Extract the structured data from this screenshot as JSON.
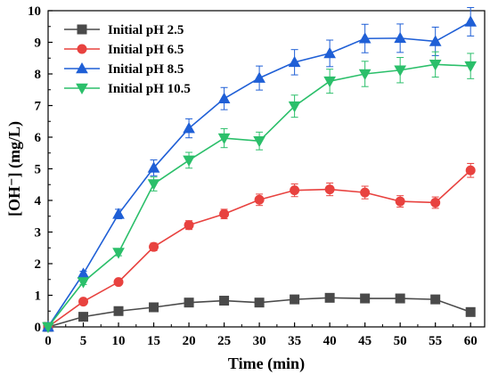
{
  "chart_data": {
    "type": "line",
    "title": "",
    "xlabel": "Time (min)",
    "ylabel": "[OH⁻] (mg/L)",
    "xlim": [
      0,
      62
    ],
    "ylim": [
      0,
      10
    ],
    "xticks": [
      0,
      5,
      10,
      15,
      20,
      25,
      30,
      35,
      40,
      45,
      50,
      55,
      60
    ],
    "yticks": [
      0,
      1,
      2,
      3,
      4,
      5,
      6,
      7,
      8,
      9,
      10
    ],
    "grid": false,
    "legend_position": "top-left",
    "x": [
      0,
      5,
      10,
      15,
      20,
      25,
      30,
      35,
      40,
      45,
      50,
      55,
      60
    ],
    "series": [
      {
        "name": "Initial pH 2.5",
        "color": "#4a4a4a",
        "marker": "square",
        "values": [
          0,
          0.32,
          0.5,
          0.62,
          0.77,
          0.83,
          0.77,
          0.87,
          0.92,
          0.9,
          0.9,
          0.87,
          0.47
        ],
        "errors": [
          0,
          0.05,
          0.05,
          0.05,
          0.06,
          0.08,
          0.07,
          0.08,
          0.1,
          0.09,
          0.09,
          0.09,
          0.05
        ]
      },
      {
        "name": "Initial pH 6.5",
        "color": "#e8423f",
        "marker": "circle",
        "values": [
          0,
          0.8,
          1.42,
          2.53,
          3.22,
          3.57,
          4.02,
          4.32,
          4.35,
          4.25,
          3.97,
          3.93,
          4.95
        ],
        "errors": [
          0,
          0.06,
          0.07,
          0.12,
          0.14,
          0.15,
          0.18,
          0.2,
          0.2,
          0.2,
          0.18,
          0.18,
          0.22
        ]
      },
      {
        "name": "Initial pH 8.5",
        "color": "#1f5fd6",
        "marker": "triangle-up",
        "values": [
          0,
          1.68,
          3.57,
          5.03,
          6.28,
          7.22,
          7.87,
          8.37,
          8.65,
          9.12,
          9.13,
          9.03,
          9.65
        ],
        "errors": [
          0,
          0.08,
          0.15,
          0.25,
          0.3,
          0.35,
          0.38,
          0.4,
          0.42,
          0.45,
          0.45,
          0.45,
          0.45
        ]
      },
      {
        "name": "Initial pH 10.5",
        "color": "#2bbf6a",
        "marker": "triangle-down",
        "values": [
          0,
          1.42,
          2.35,
          4.52,
          5.27,
          5.97,
          5.88,
          6.98,
          7.77,
          8.0,
          8.12,
          8.3,
          8.25
        ],
        "errors": [
          0,
          0.08,
          0.1,
          0.22,
          0.25,
          0.3,
          0.28,
          0.35,
          0.38,
          0.4,
          0.4,
          0.4,
          0.4
        ]
      }
    ]
  }
}
